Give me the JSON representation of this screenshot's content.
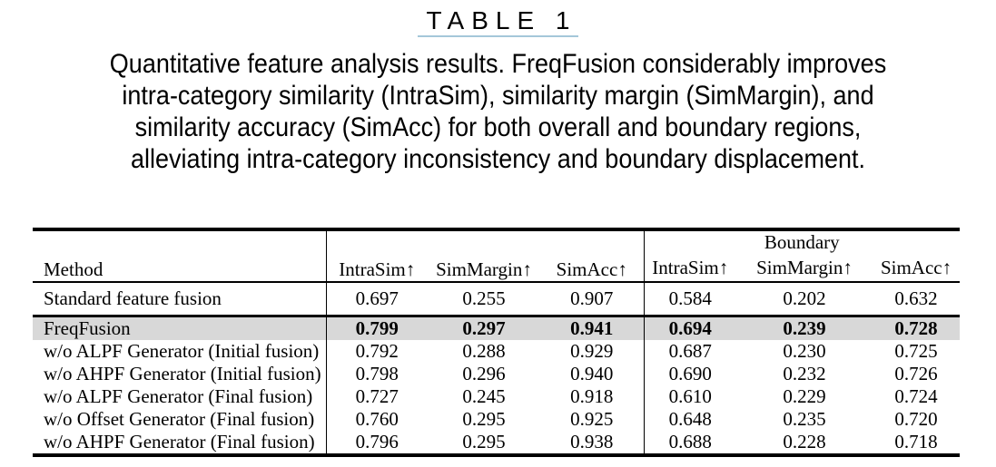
{
  "caption": {
    "title": "TABLE 1",
    "lines": [
      "Quantitative feature analysis results. FreqFusion considerably improves",
      "intra-category similarity (IntraSim), similarity margin (SimMargin), and",
      "similarity accuracy (SimAcc) for both overall and boundary regions,",
      "alleviating intra-category inconsistency and boundary displacement."
    ]
  },
  "table": {
    "method_header": "Method",
    "overall_headers": [
      "IntraSim↑",
      "SimMargin↑",
      "SimAcc↑"
    ],
    "boundary_group_label": "Boundary",
    "boundary_headers": [
      "IntraSim↑",
      "SimMargin↑",
      "SimAcc↑"
    ],
    "highlight_color": "#d8d8d8",
    "rows": [
      {
        "method": "Standard feature fusion",
        "group": "baseline",
        "highlight": false,
        "values": [
          "0.697",
          "0.255",
          "0.907",
          "0.584",
          "0.202",
          "0.632"
        ]
      },
      {
        "method": "FreqFusion",
        "group": "ablation",
        "highlight": true,
        "values": [
          "0.799",
          "0.297",
          "0.941",
          "0.694",
          "0.239",
          "0.728"
        ]
      },
      {
        "method": "w/o ALPF Generator (Initial fusion)",
        "group": "ablation",
        "highlight": false,
        "values": [
          "0.792",
          "0.288",
          "0.929",
          "0.687",
          "0.230",
          "0.725"
        ]
      },
      {
        "method": "w/o AHPF Generator (Initial fusion)",
        "group": "ablation",
        "highlight": false,
        "values": [
          "0.798",
          "0.296",
          "0.940",
          "0.690",
          "0.232",
          "0.726"
        ]
      },
      {
        "method": "w/o ALPF Generator (Final fusion)",
        "group": "ablation",
        "highlight": false,
        "values": [
          "0.727",
          "0.245",
          "0.918",
          "0.610",
          "0.229",
          "0.724"
        ]
      },
      {
        "method": "w/o Offset Generator (Final fusion)",
        "group": "ablation",
        "highlight": false,
        "values": [
          "0.760",
          "0.295",
          "0.925",
          "0.648",
          "0.235",
          "0.720"
        ]
      },
      {
        "method": "w/o AHPF Generator (Final fusion)",
        "group": "ablation",
        "highlight": false,
        "values": [
          "0.796",
          "0.295",
          "0.938",
          "0.688",
          "0.228",
          "0.718"
        ]
      }
    ]
  }
}
